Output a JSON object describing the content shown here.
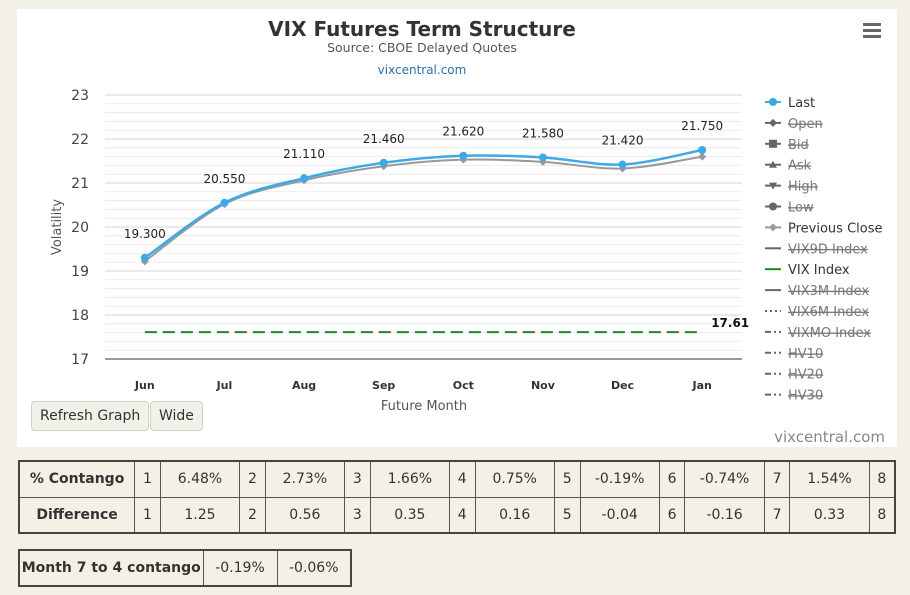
{
  "chart_data": {
    "type": "line",
    "title": "VIX Futures Term Structure",
    "subtitle": "Source: CBOE Delayed Quotes",
    "link": "vixcentral.com",
    "credit": "vixcentral.com",
    "xlabel": "Future Month",
    "ylabel": "Volatility",
    "categories": [
      "Jun",
      "Jul",
      "Aug",
      "Sep",
      "Oct",
      "Nov",
      "Dec",
      "Jan"
    ],
    "yticks": [
      17,
      18,
      19,
      20,
      21,
      22,
      23
    ],
    "ylim": [
      17,
      23
    ],
    "series": [
      {
        "name": "Last",
        "values": [
          19.3,
          20.55,
          21.11,
          21.46,
          21.62,
          21.58,
          21.42,
          21.75
        ],
        "labels": [
          "19.300",
          "20.550",
          "21.110",
          "21.460",
          "21.620",
          "21.580",
          "21.420",
          "21.750"
        ],
        "color": "#3fa9e8"
      },
      {
        "name": "Previous Close",
        "values": [
          19.22,
          20.52,
          21.06,
          21.38,
          21.53,
          21.48,
          21.33,
          21.6
        ],
        "color": "#999999"
      },
      {
        "name": "VIX Index",
        "values": [
          17.61,
          17.61,
          17.61,
          17.61,
          17.61,
          17.61,
          17.61,
          17.61
        ],
        "end_label": "17.61",
        "color": "#1b8c1b"
      }
    ],
    "legend": {
      "placement": "right",
      "items": [
        {
          "name": "Last",
          "symbol": "circle",
          "line": "solid",
          "color": "#3fa9e8",
          "hidden": false
        },
        {
          "name": "Open",
          "symbol": "diamond",
          "line": "solid",
          "color": "#555555",
          "hidden": true
        },
        {
          "name": "Bid",
          "symbol": "square",
          "line": "solid",
          "color": "#555555",
          "hidden": true
        },
        {
          "name": "Ask",
          "symbol": "triangle",
          "line": "solid",
          "color": "#555555",
          "hidden": true
        },
        {
          "name": "High",
          "symbol": "triangle-down",
          "line": "solid",
          "color": "#555555",
          "hidden": true
        },
        {
          "name": "Low",
          "symbol": "circle",
          "line": "solid",
          "color": "#555555",
          "hidden": true
        },
        {
          "name": "Previous Close",
          "symbol": "diamond",
          "line": "solid",
          "color": "#999999",
          "hidden": false
        },
        {
          "name": "VIX9D Index",
          "symbol": "none",
          "line": "solid",
          "color": "#777777",
          "hidden": true
        },
        {
          "name": "VIX Index",
          "symbol": "none",
          "line": "solid",
          "color": "#1b8c1b",
          "hidden": false
        },
        {
          "name": "VIX3M Index",
          "symbol": "none",
          "line": "solid",
          "color": "#777777",
          "hidden": true
        },
        {
          "name": "VIX6M Index",
          "symbol": "none",
          "line": "dotted",
          "color": "#777777",
          "hidden": true
        },
        {
          "name": "VIXMO Index",
          "symbol": "none",
          "line": "dashdot",
          "color": "#777777",
          "hidden": true
        },
        {
          "name": "HV10",
          "symbol": "none",
          "line": "dashdot",
          "color": "#777777",
          "hidden": true
        },
        {
          "name": "HV20",
          "symbol": "none",
          "line": "dashdot",
          "color": "#777777",
          "hidden": true
        },
        {
          "name": "HV30",
          "symbol": "none",
          "line": "dashdot",
          "color": "#777777",
          "hidden": true
        }
      ]
    },
    "grid": true
  },
  "controls": {
    "menu_icon": "hamburger-menu-icon",
    "refresh_label": "Refresh Graph",
    "wide_label": "Wide"
  },
  "stats": {
    "contango_label": "% Contango",
    "contango": [
      {
        "month": "1",
        "value": "6.48%"
      },
      {
        "month": "2",
        "value": "2.73%"
      },
      {
        "month": "3",
        "value": "1.66%"
      },
      {
        "month": "4",
        "value": "0.75%"
      },
      {
        "month": "5",
        "value": "-0.19%"
      },
      {
        "month": "6",
        "value": "-0.74%"
      },
      {
        "month": "7",
        "value": "1.54%"
      },
      {
        "month": "8",
        "value": ""
      }
    ],
    "difference_label": "Difference",
    "difference": [
      {
        "month": "1",
        "value": "1.25"
      },
      {
        "month": "2",
        "value": "0.56"
      },
      {
        "month": "3",
        "value": "0.35"
      },
      {
        "month": "4",
        "value": "0.16"
      },
      {
        "month": "5",
        "value": "-0.04"
      },
      {
        "month": "6",
        "value": "-0.16"
      },
      {
        "month": "7",
        "value": "0.33"
      },
      {
        "month": "8",
        "value": ""
      }
    ],
    "month_7_4_label": "Month 7 to 4 contango",
    "month_7_4_values": [
      "-0.19%",
      "-0.06%"
    ]
  }
}
